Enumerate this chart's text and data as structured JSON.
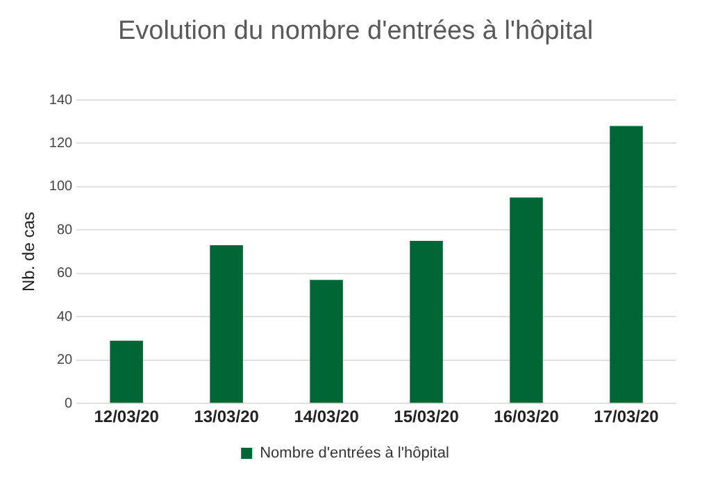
{
  "chart_data": {
    "type": "bar",
    "title": "Evolution du nombre d'entrées à l'hôpital",
    "ylabel": "Nb. de cas",
    "categories": [
      "12/03/20",
      "13/03/20",
      "14/03/20",
      "15/03/20",
      "16/03/20",
      "17/03/20"
    ],
    "series": [
      {
        "name": "Nombre d'entrées à l'hôpital",
        "color": "#006633",
        "values": [
          29,
          73,
          57,
          75,
          95,
          128
        ]
      }
    ],
    "ylim": [
      0,
      140
    ],
    "yticks": [
      0,
      20,
      40,
      60,
      80,
      100,
      120,
      140
    ],
    "grid": "y",
    "legend": "bottom"
  }
}
